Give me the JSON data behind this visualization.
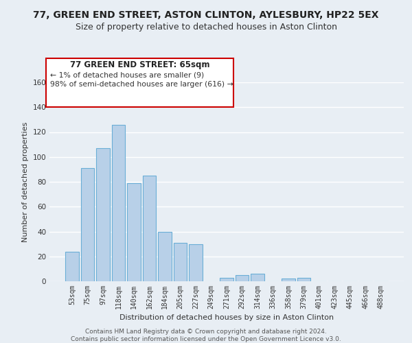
{
  "title": "77, GREEN END STREET, ASTON CLINTON, AYLESBURY, HP22 5EX",
  "subtitle": "Size of property relative to detached houses in Aston Clinton",
  "xlabel": "Distribution of detached houses by size in Aston Clinton",
  "ylabel": "Number of detached properties",
  "bar_labels": [
    "53sqm",
    "75sqm",
    "97sqm",
    "118sqm",
    "140sqm",
    "162sqm",
    "184sqm",
    "205sqm",
    "227sqm",
    "249sqm",
    "271sqm",
    "292sqm",
    "314sqm",
    "336sqm",
    "358sqm",
    "379sqm",
    "401sqm",
    "423sqm",
    "445sqm",
    "466sqm",
    "488sqm"
  ],
  "bar_values": [
    24,
    91,
    107,
    126,
    79,
    85,
    40,
    31,
    30,
    0,
    3,
    5,
    6,
    0,
    2,
    3,
    0,
    0,
    0,
    0,
    0
  ],
  "bar_color": "#b8d0e8",
  "bar_edge_color": "#6aaed6",
  "ylim": [
    0,
    160
  ],
  "yticks": [
    0,
    20,
    40,
    60,
    80,
    100,
    120,
    140,
    160
  ],
  "annotation_title": "77 GREEN END STREET: 65sqm",
  "annotation_line1": "← 1% of detached houses are smaller (9)",
  "annotation_line2": "98% of semi-detached houses are larger (616) →",
  "annotation_box_color": "#ffffff",
  "annotation_box_edge": "#cc0000",
  "footer1": "Contains HM Land Registry data © Crown copyright and database right 2024.",
  "footer2": "Contains public sector information licensed under the Open Government Licence v3.0.",
  "background_color": "#e8eef4",
  "grid_color": "#ffffff",
  "title_fontsize": 10,
  "subtitle_fontsize": 9,
  "axis_label_fontsize": 8,
  "tick_fontsize": 7,
  "footer_fontsize": 6.5
}
